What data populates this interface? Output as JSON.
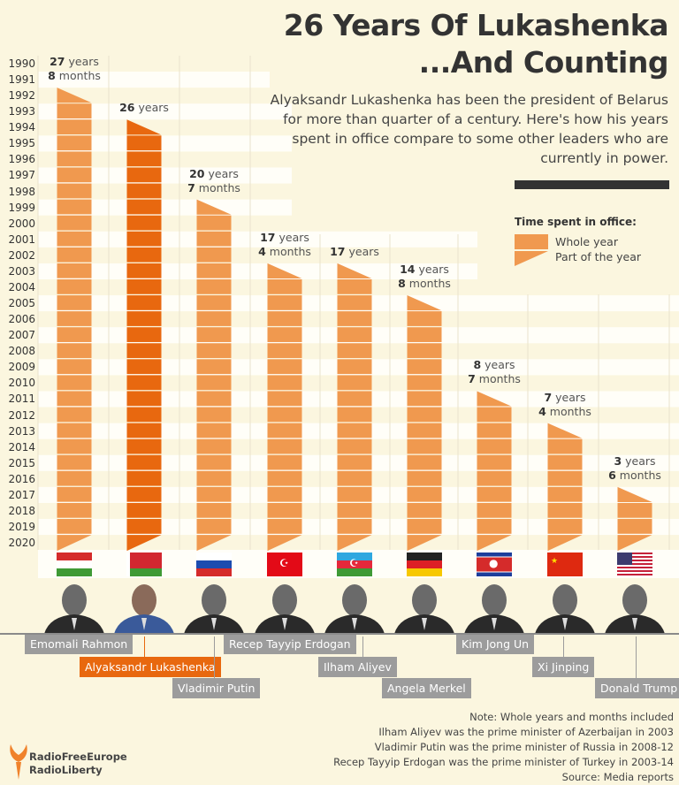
{
  "header": {
    "title_line1": "26 Years Of Lukashenka",
    "title_line2": "...And Counting",
    "subtitle": "Alyaksandr Lukashenka has been the president of Belarus for more than quarter of a century. Here's how his years spent in office compare to some other leaders who are currently in power."
  },
  "legend": {
    "title": "Time spent in office:",
    "whole_year": "Whole year",
    "part_year": "Part of the year"
  },
  "chart_data": {
    "type": "bar",
    "orientation": "vertical-timeline",
    "y_axis_ticks": [
      "1990",
      "1991",
      "1992",
      "1993",
      "1994",
      "1995",
      "1996",
      "1997",
      "1998",
      "1999",
      "2000",
      "2001",
      "2002",
      "2003",
      "2004",
      "2005",
      "2006",
      "2007",
      "2008",
      "2009",
      "2010",
      "2011",
      "2012",
      "2013",
      "2014",
      "2015",
      "2016",
      "2017",
      "2018",
      "2019",
      "2020"
    ],
    "ylim": [
      1990,
      2020
    ],
    "units": {
      "years": "years",
      "months": "months"
    },
    "colors": {
      "default": "#f0994f",
      "highlight": "#e8680f"
    },
    "series": [
      {
        "leader": "Emomali Rahmon",
        "country": "Tajikistan",
        "years": 27,
        "months": 8,
        "start_year": 1992,
        "end_year": 2020,
        "highlight": false
      },
      {
        "leader": "Alyaksandr Lukashenka",
        "country": "Belarus",
        "years": 26,
        "months": 0,
        "start_year": 1994,
        "end_year": 2020,
        "highlight": true
      },
      {
        "leader": "Vladimir Putin",
        "country": "Russia",
        "years": 20,
        "months": 7,
        "start_year": 1999,
        "end_year": 2020,
        "highlight": false
      },
      {
        "leader": "Recep Tayyip Erdogan",
        "country": "Turkey",
        "years": 17,
        "months": 4,
        "start_year": 2003,
        "end_year": 2020,
        "highlight": false
      },
      {
        "leader": "Ilham Aliyev",
        "country": "Azerbaijan",
        "years": 17,
        "months": 0,
        "start_year": 2003,
        "end_year": 2020,
        "highlight": false
      },
      {
        "leader": "Angela Merkel",
        "country": "Germany",
        "years": 14,
        "months": 8,
        "start_year": 2005,
        "end_year": 2020,
        "highlight": false
      },
      {
        "leader": "Kim Jong Un",
        "country": "North Korea",
        "years": 8,
        "months": 7,
        "start_year": 2011,
        "end_year": 2020,
        "highlight": false
      },
      {
        "leader": "Xi Jinping",
        "country": "China",
        "years": 7,
        "months": 4,
        "start_year": 2013,
        "end_year": 2020,
        "highlight": false
      },
      {
        "leader": "Donald Trump",
        "country": "United States",
        "years": 3,
        "months": 6,
        "start_year": 2017,
        "end_year": 2020,
        "highlight": false
      }
    ]
  },
  "notes": [
    "Note: Whole years and months included",
    "Ilham Aliyev was the prime minister of Azerbaijan in 2003",
    "Vladimir Putin was the prime minister of Russia in 2008-12",
    "Recep Tayyip Erdogan was the prime minister of Turkey in 2003-14",
    "Source: Media reports"
  ],
  "logo": {
    "line1": "RadioFreeEurope",
    "line2": "RadioLiberty",
    "icon": "torch-icon"
  }
}
